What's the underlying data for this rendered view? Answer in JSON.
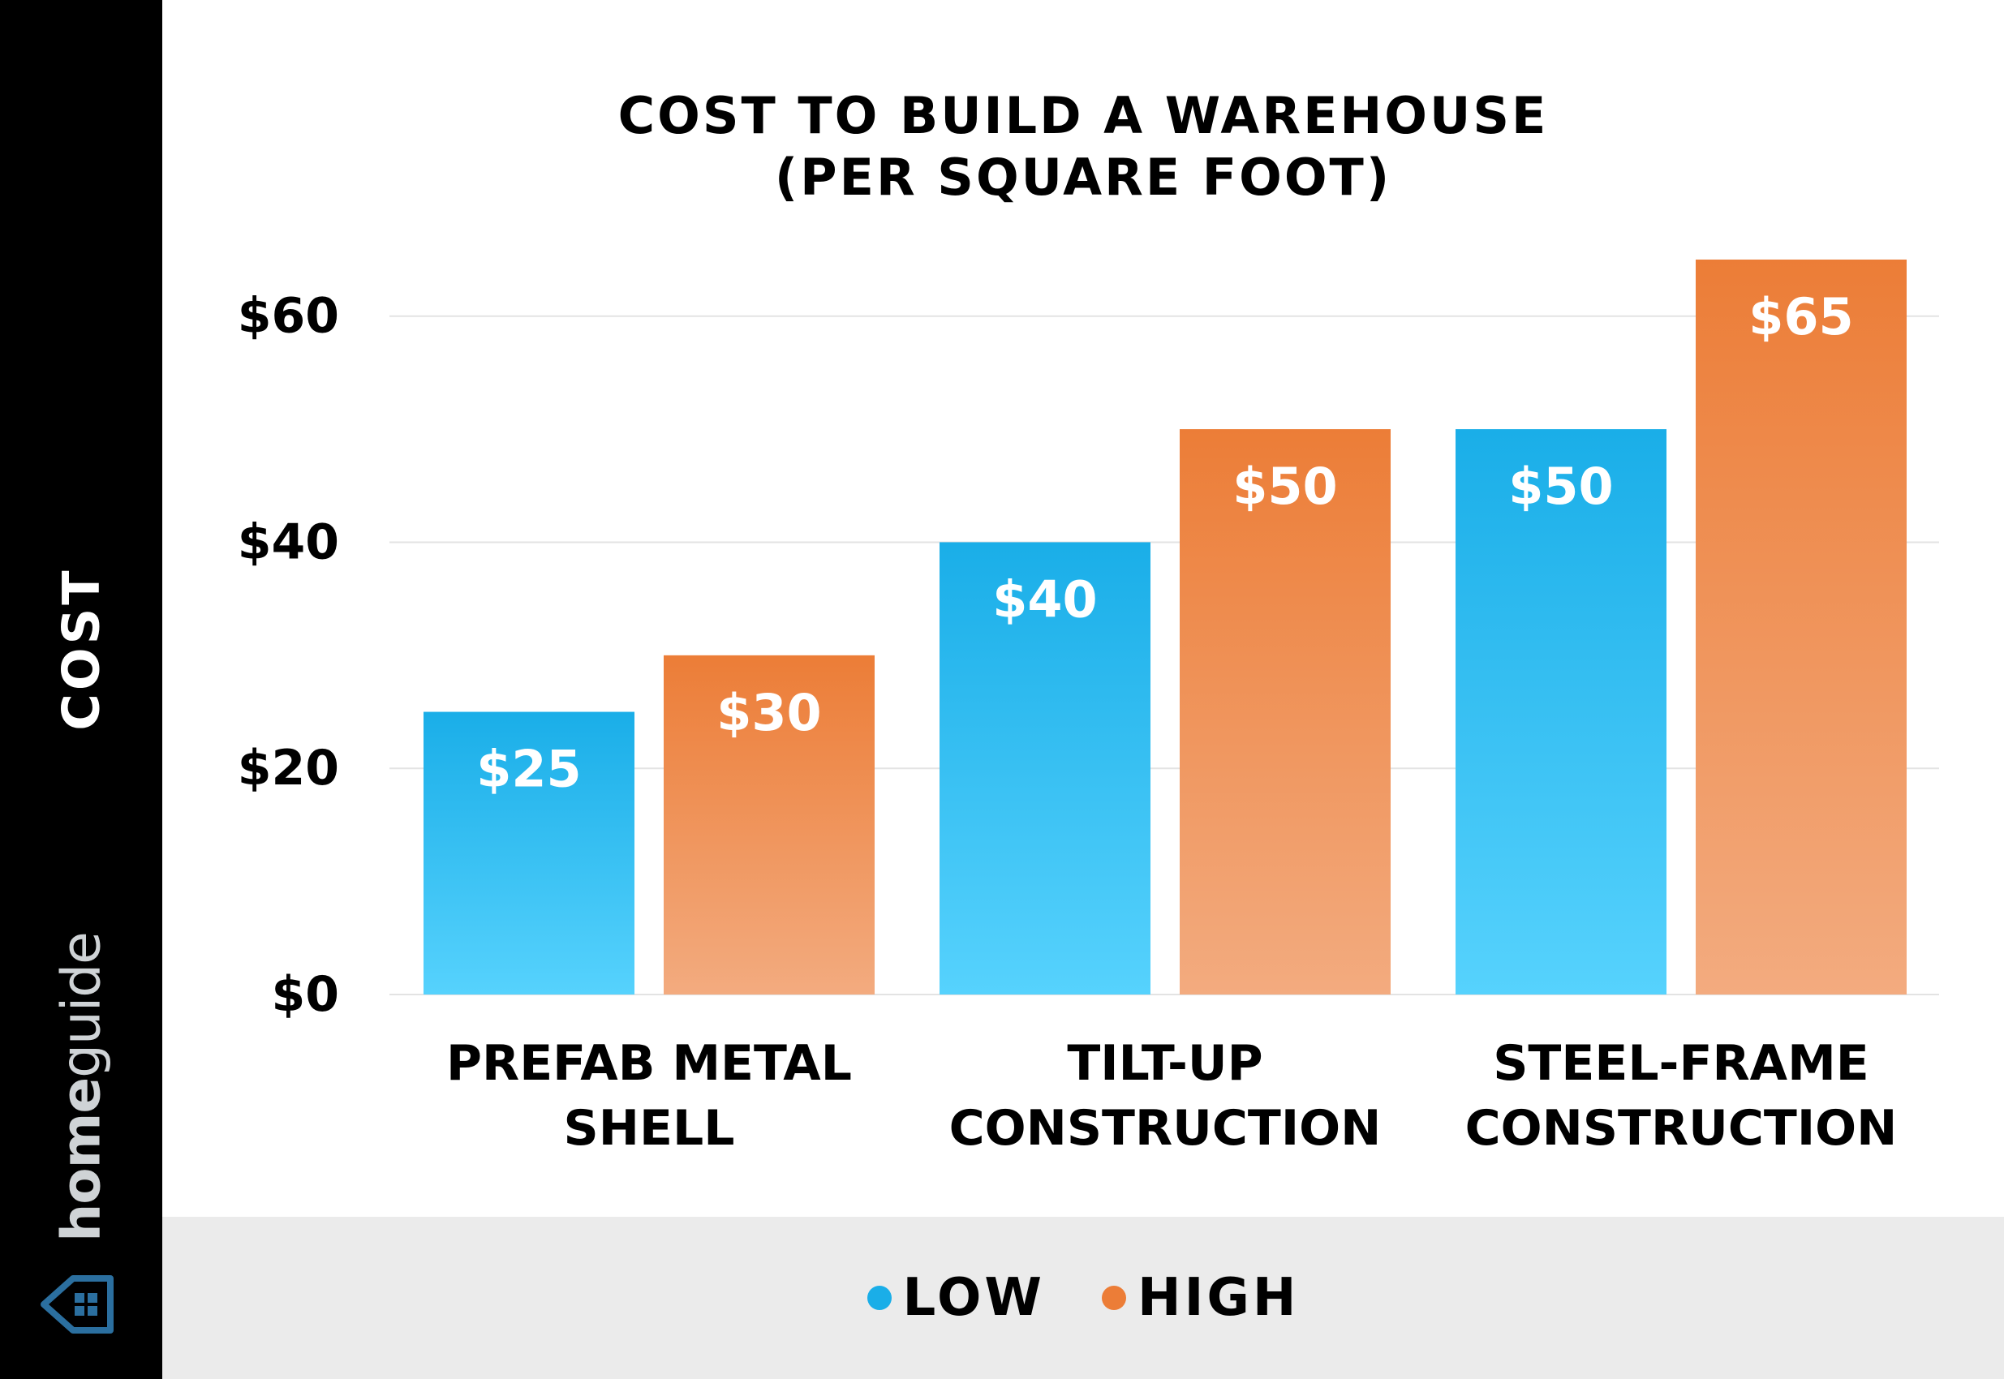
{
  "brand": {
    "prefix": "home",
    "suffix": "guide"
  },
  "colors": {
    "low": "#1aaee8",
    "high": "#ec7d37",
    "sidebar": "#000000",
    "legend_band": "#ebebeb"
  },
  "chart_data": {
    "type": "bar",
    "title": "COST TO BUILD A WAREHOUSE",
    "subtitle": "(PER SQUARE FOOT)",
    "ylabel": "COST",
    "xlabel": "",
    "categories": [
      [
        "PREFAB METAL",
        "SHELL"
      ],
      [
        "TILT-UP",
        "CONSTRUCTION"
      ],
      [
        "STEEL-FRAME",
        "CONSTRUCTION"
      ]
    ],
    "series": [
      {
        "name": "LOW",
        "values": [
          25,
          40,
          50
        ],
        "labels": [
          "$25",
          "$40",
          "$50"
        ]
      },
      {
        "name": "HIGH",
        "values": [
          30,
          50,
          65
        ],
        "labels": [
          "$30",
          "$50",
          "$65"
        ]
      }
    ],
    "yticks": [
      0,
      20,
      40,
      60
    ],
    "ytick_labels": [
      "$0",
      "$20",
      "$40",
      "$60"
    ],
    "ylim": [
      0,
      65
    ],
    "grid": true,
    "legend_position": "bottom-center"
  }
}
